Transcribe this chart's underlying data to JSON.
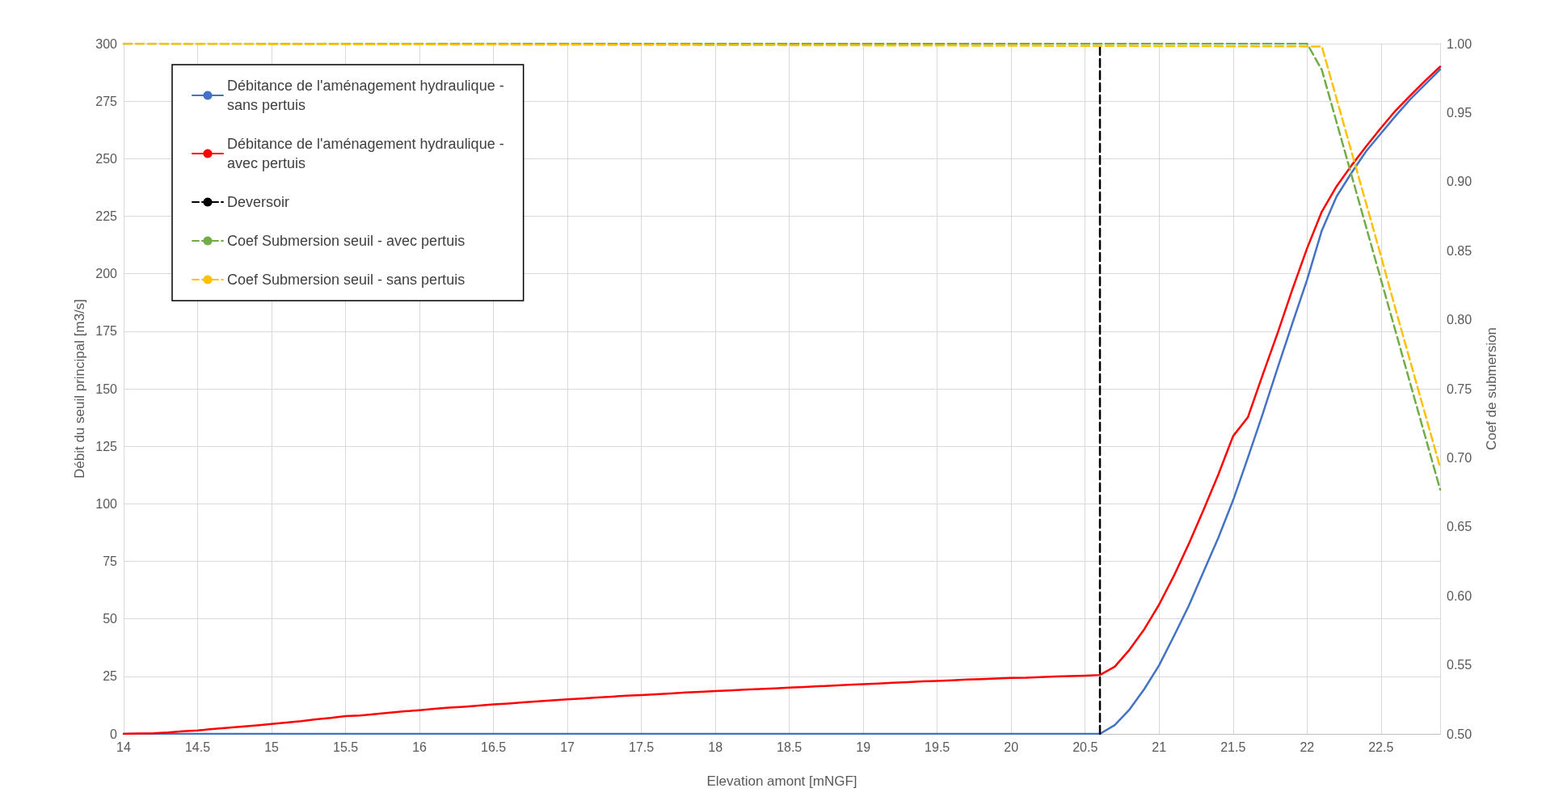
{
  "chart_data": {
    "type": "line",
    "xlabel": "Elevation amont [mNGF]",
    "ylabel": "Débit du seuil principal [m3/s]",
    "y2label": "Coef de submersion",
    "x": [
      14,
      14.1,
      14.2,
      14.3,
      14.4,
      14.5,
      14.6,
      14.7,
      14.8,
      14.9,
      15,
      15.1,
      15.2,
      15.3,
      15.4,
      15.5,
      15.6,
      15.7,
      15.8,
      15.9,
      16,
      16.1,
      16.2,
      16.3,
      16.4,
      16.5,
      16.6,
      16.7,
      16.8,
      16.9,
      17,
      17.1,
      17.2,
      17.3,
      17.4,
      17.5,
      17.6,
      17.7,
      17.8,
      17.9,
      18,
      18.1,
      18.2,
      18.3,
      18.4,
      18.5,
      18.6,
      18.7,
      18.8,
      18.9,
      19,
      19.1,
      19.2,
      19.3,
      19.4,
      19.5,
      19.6,
      19.7,
      19.8,
      19.9,
      20,
      20.1,
      20.2,
      20.3,
      20.4,
      20.5,
      20.6,
      20.7,
      20.8,
      20.9,
      21,
      21.1,
      21.2,
      21.3,
      21.4,
      21.5,
      21.6,
      21.7,
      21.8,
      21.9,
      22,
      22.1,
      22.2,
      22.3,
      22.4,
      22.5,
      22.6,
      22.7,
      22.8,
      22.9
    ],
    "series": [
      {
        "name": "Débitance de l'aménagement hydraulique - sans pertuis",
        "color": "#4472c4",
        "values": [
          0,
          0,
          0,
          0,
          0,
          0,
          0,
          0,
          0,
          0,
          0,
          0,
          0,
          0,
          0,
          0,
          0,
          0,
          0,
          0,
          0,
          0,
          0,
          0,
          0,
          0,
          0,
          0,
          0,
          0,
          0,
          0,
          0,
          0,
          0,
          0,
          0,
          0,
          0,
          0,
          0,
          0,
          0,
          0,
          0,
          0,
          0,
          0,
          0,
          0,
          0,
          0,
          0,
          0,
          0,
          0,
          0,
          0,
          0,
          0,
          0,
          0,
          0,
          0,
          0,
          0,
          0,
          3.8,
          10.6,
          19.5,
          29.8,
          42.5,
          55.6,
          70.4,
          85.2,
          101.5,
          120,
          139,
          158.8,
          178.2,
          197.3,
          218.8,
          233.6,
          243.8,
          253.3,
          261,
          268.7,
          276,
          282.4,
          288.8
        ]
      },
      {
        "name": "Débitance de l'aménagement hydraulique - avec pertuis",
        "color": "#ff0000",
        "values": [
          0,
          0.2,
          0.3,
          0.6,
          1.1,
          1.5,
          2.1,
          2.6,
          3.2,
          3.7,
          4.3,
          4.9,
          5.5,
          6.3,
          6.9,
          7.7,
          8,
          8.6,
          9.2,
          9.8,
          10.3,
          10.9,
          11.4,
          11.8,
          12.3,
          12.8,
          13.2,
          13.7,
          14.1,
          14.6,
          15,
          15.4,
          15.8,
          16.2,
          16.6,
          16.9,
          17.2,
          17.6,
          18,
          18.3,
          18.6,
          18.9,
          19.2,
          19.5,
          19.8,
          20.1,
          20.4,
          20.7,
          21,
          21.3,
          21.6,
          21.9,
          22.2,
          22.5,
          22.8,
          23,
          23.3,
          23.6,
          23.8,
          24.1,
          24.3,
          24.4,
          24.7,
          24.9,
          25.1,
          25.3,
          25.6,
          29.2,
          36.6,
          45.5,
          56.2,
          68.7,
          82.5,
          97.3,
          112.7,
          129.4,
          137.6,
          156,
          174,
          193,
          211,
          227,
          238,
          247,
          255.4,
          263.4,
          271,
          277.6,
          284,
          290
        ]
      },
      {
        "name": "Deversoir",
        "color": "#000000",
        "line_style": "dashed",
        "x": [
          20.6,
          20.6
        ],
        "values": [
          0,
          300
        ]
      },
      {
        "name": "Coef Submersion seuil - avec pertuis",
        "color": "#70ad47",
        "line_style": "dashed",
        "axis": "y2",
        "x": [
          14,
          22,
          22.1,
          22.2,
          22.3,
          22.4,
          22.5,
          22.6,
          22.7,
          22.8,
          22.9
        ],
        "values": [
          1,
          1,
          0.981,
          0.943,
          0.905,
          0.867,
          0.829,
          0.791,
          0.753,
          0.715,
          0.677
        ]
      },
      {
        "name": "Coef Submersion seuil - sans pertuis",
        "color": "#ffc000",
        "line_style": "dashed",
        "axis": "y2",
        "x": [
          14,
          22.1,
          22.2,
          22.3,
          22.4,
          22.5,
          22.6,
          22.7,
          22.8,
          22.9
        ],
        "values": [
          1,
          0.998,
          0.96,
          0.922,
          0.884,
          0.846,
          0.807,
          0.769,
          0.731,
          0.693
        ]
      }
    ],
    "xlim": [
      14,
      22.9
    ],
    "xticks": [
      14,
      14.5,
      15,
      15.5,
      16,
      16.5,
      17,
      17.5,
      18,
      18.5,
      19,
      19.5,
      20,
      20.5,
      21,
      21.5,
      22,
      22.5
    ],
    "ylim": [
      0,
      300
    ],
    "yticks": [
      0,
      25,
      50,
      75,
      100,
      125,
      150,
      175,
      200,
      225,
      250,
      275,
      300
    ],
    "y2lim": [
      0.5,
      1
    ],
    "y2ticks": [
      {
        "value": 0.5,
        "label": "0.50"
      },
      {
        "value": 0.55,
        "label": "0.55"
      },
      {
        "value": 0.6,
        "label": "0.60"
      },
      {
        "value": 0.65,
        "label": "0.65"
      },
      {
        "value": 0.7,
        "label": "0.70"
      },
      {
        "value": 0.75,
        "label": "0.75"
      },
      {
        "value": 0.8,
        "label": "0.80"
      },
      {
        "value": 0.85,
        "label": "0.85"
      },
      {
        "value": 0.9,
        "label": "0.90"
      },
      {
        "value": 0.95,
        "label": "0.95"
      },
      {
        "value": 1,
        "label": "1.00"
      }
    ],
    "grid": true,
    "legend": "top left",
    "marker": "none",
    "line_style": "solid"
  }
}
